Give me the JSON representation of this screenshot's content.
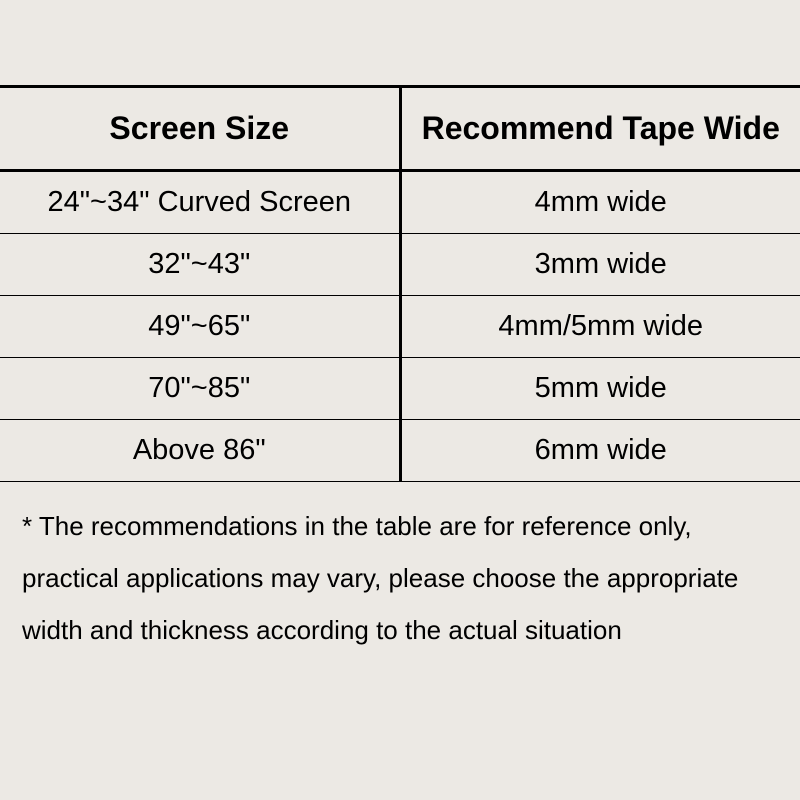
{
  "table": {
    "type": "table",
    "columns": [
      "Screen Size",
      "Recommend Tape Wide"
    ],
    "rows": [
      [
        "24\"~34\" Curved Screen",
        "4mm wide"
      ],
      [
        "32\"~43\"",
        "3mm wide"
      ],
      [
        "49\"~65\"",
        "4mm/5mm wide"
      ],
      [
        "70\"~85\"",
        "5mm wide"
      ],
      [
        "Above 86\"",
        "6mm wide"
      ]
    ],
    "header_fontsize": 32,
    "cell_fontsize": 29,
    "header_fontweight": "bold",
    "border_color": "#000000",
    "header_border_width": 3,
    "row_border_width": 1,
    "background_color": "#ece9e4",
    "text_color": "#000000",
    "column_widths": [
      "50%",
      "50%"
    ],
    "alignment": "center"
  },
  "footnote": {
    "text": "* The recommendations in the table are for reference only, practical applications may vary, please choose the appropriate width and thickness according to the actual situation",
    "fontsize": 26,
    "line_height": 2.0,
    "text_color": "#000000"
  }
}
